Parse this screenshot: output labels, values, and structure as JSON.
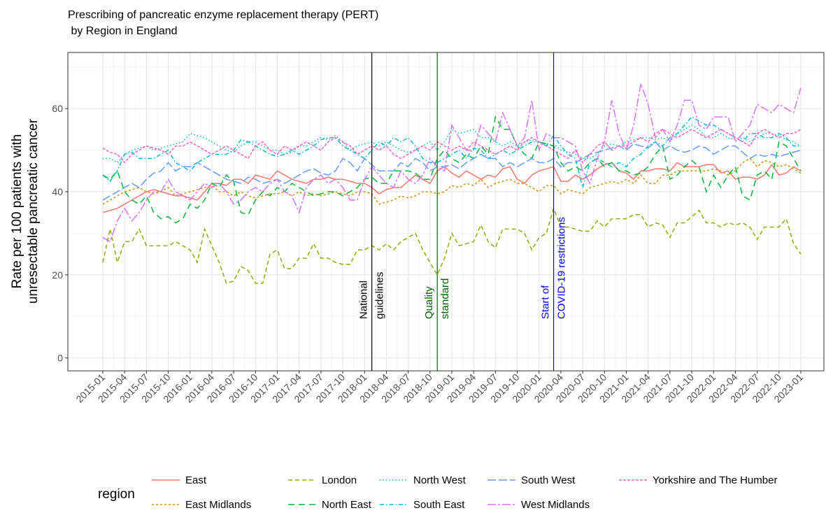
{
  "chart_data": {
    "type": "line",
    "title": [
      "Prescribing of pancreatic enzyme replacement therapy (PERT)",
      " by Region in England"
    ],
    "y_label": [
      "Rate per 100 patients with",
      "unresectable pancreatic cancer"
    ],
    "legend_title": "region",
    "x": [
      "2015-01",
      "2015-02",
      "2015-03",
      "2015-04",
      "2015-05",
      "2015-06",
      "2015-07",
      "2015-08",
      "2015-09",
      "2015-10",
      "2015-11",
      "2015-12",
      "2016-01",
      "2016-02",
      "2016-03",
      "2016-04",
      "2016-05",
      "2016-06",
      "2016-07",
      "2016-08",
      "2016-09",
      "2016-10",
      "2016-11",
      "2016-12",
      "2017-01",
      "2017-02",
      "2017-03",
      "2017-04",
      "2017-05",
      "2017-06",
      "2017-07",
      "2017-08",
      "2017-09",
      "2017-10",
      "2017-11",
      "2017-12",
      "2018-01",
      "2018-02",
      "2018-03",
      "2018-04",
      "2018-05",
      "2018-06",
      "2018-07",
      "2018-08",
      "2018-09",
      "2018-10",
      "2018-11",
      "2018-12",
      "2019-01",
      "2019-02",
      "2019-03",
      "2019-04",
      "2019-05",
      "2019-06",
      "2019-07",
      "2019-08",
      "2019-09",
      "2019-10",
      "2019-11",
      "2019-12",
      "2020-01",
      "2020-02",
      "2020-03",
      "2020-04",
      "2020-05",
      "2020-06",
      "2020-07",
      "2020-08",
      "2020-09",
      "2020-10",
      "2020-11",
      "2020-12",
      "2021-01",
      "2021-02",
      "2021-03",
      "2021-04",
      "2021-05",
      "2021-06",
      "2021-07",
      "2021-08",
      "2021-09",
      "2021-10",
      "2021-11",
      "2021-12",
      "2022-01",
      "2022-02",
      "2022-03",
      "2022-04",
      "2022-05",
      "2022-06",
      "2022-07",
      "2022-08",
      "2022-09",
      "2022-10",
      "2022-11",
      "2022-12",
      "2023-01"
    ],
    "xticks": [
      "2015-01",
      "2015-04",
      "2015-07",
      "2015-10",
      "2016-01",
      "2016-04",
      "2016-07",
      "2016-10",
      "2017-01",
      "2017-04",
      "2017-07",
      "2017-10",
      "2018-01",
      "2018-04",
      "2018-07",
      "2018-10",
      "2019-01",
      "2019-04",
      "2019-07",
      "2019-10",
      "2020-01",
      "2020-04",
      "2020-07",
      "2020-10",
      "2021-01",
      "2021-04",
      "2021-07",
      "2021-10",
      "2022-01",
      "2022-04",
      "2022-07",
      "2022-10",
      "2023-01"
    ],
    "ylim": [
      -3.1,
      73.5
    ],
    "yticks": [
      0,
      20,
      40,
      60
    ],
    "grid": true,
    "annotations": [
      {
        "x": "2018-02",
        "label": [
          "National",
          "guidelines"
        ],
        "color": "#000000"
      },
      {
        "x": "2018-11",
        "label": [
          "Quality",
          "standard"
        ],
        "color": "#006400"
      },
      {
        "x": "2020-03",
        "label": [
          "Start of",
          "COVID-19 restrictions"
        ],
        "color": "#0000ff"
      }
    ],
    "series": [
      {
        "name": "East",
        "color": "#F8766D",
        "dash": "none",
        "values": [
          35,
          35.5,
          36,
          37,
          38,
          39,
          40,
          40.5,
          40,
          39.5,
          39,
          39,
          38.5,
          38,
          40,
          42,
          42,
          41.5,
          43,
          43,
          42,
          44,
          43.5,
          43,
          45,
          44,
          43,
          42.5,
          42,
          43,
          43,
          43.5,
          43,
          43,
          42.5,
          42,
          42,
          41,
          39.5,
          40.5,
          41,
          41,
          42.5,
          44,
          43,
          42,
          45,
          46,
          44.5,
          43.5,
          45,
          44,
          43,
          44,
          43.5,
          45.5,
          46,
          43,
          42,
          44,
          45,
          45.5,
          46,
          42.5,
          42.5,
          44,
          43,
          44,
          45.5,
          46.5,
          47,
          45,
          44.5,
          43,
          45,
          45,
          45.5,
          45.5,
          45,
          47,
          46,
          46,
          46,
          46.5,
          46.5,
          44.5,
          45,
          43,
          43.5,
          43.5,
          43,
          44,
          46.5,
          44,
          44.5,
          46,
          45
        ]
      },
      {
        "name": "East Midlands",
        "color": "#D39200",
        "dash": "3 3",
        "values": [
          37,
          38,
          39,
          40,
          40.5,
          41,
          40,
          39.5,
          40,
          41,
          39,
          39.5,
          40,
          40.5,
          41,
          41.5,
          40,
          40,
          39,
          40,
          39,
          38.5,
          39,
          39.5,
          39.5,
          40,
          39,
          40,
          39,
          39.5,
          39,
          39.5,
          40,
          39.5,
          39,
          40,
          40,
          39.5,
          37,
          37.5,
          38,
          39,
          38.5,
          39,
          40,
          40,
          39.5,
          40,
          41.5,
          41,
          42,
          41.5,
          43,
          41,
          42,
          42.5,
          43,
          42,
          42,
          41,
          40,
          41.5,
          41.5,
          39.5,
          40.5,
          40,
          39.5,
          41,
          41.5,
          42,
          42.5,
          42,
          43,
          42,
          44,
          42,
          42,
          44,
          44,
          45,
          45,
          45,
          45,
          45,
          45.5,
          45,
          44,
          45,
          47,
          48,
          46,
          47.5,
          47,
          46,
          46.5,
          45.5,
          44.5
        ]
      },
      {
        "name": "London",
        "color": "#93AA00",
        "dash": "6 4",
        "values": [
          23,
          31,
          23,
          28,
          28,
          31,
          27,
          27,
          27,
          27,
          28,
          27,
          26,
          23,
          31,
          27,
          23,
          18,
          18.5,
          22,
          21,
          18,
          18,
          25,
          26,
          21.5,
          21.5,
          24,
          24,
          27.5,
          24,
          24,
          23,
          22.5,
          22.5,
          26,
          26,
          27,
          26,
          27.5,
          26,
          28,
          29,
          30,
          26,
          23,
          20,
          24,
          30,
          27,
          27.5,
          28,
          32,
          28,
          26.5,
          31,
          31,
          31,
          30,
          26,
          29,
          30,
          36,
          31.5,
          31.5,
          31,
          30.5,
          30.5,
          33,
          31.5,
          33.5,
          33.5,
          33.5,
          34.5,
          34.5,
          31.5,
          32.5,
          32,
          29,
          32.5,
          32.5,
          34,
          35.5,
          32.5,
          32.5,
          31.5,
          32.5,
          32,
          32.5,
          31.5,
          28.5,
          31.5,
          31.5,
          31.5,
          33.5,
          27.5,
          25
        ]
      },
      {
        "name": "North East",
        "color": "#00BA38",
        "dash": "9 6",
        "values": [
          44,
          43,
          45,
          40,
          38,
          37,
          39,
          35,
          33.5,
          34,
          32.5,
          33.5,
          37,
          36,
          38,
          42,
          41,
          44,
          42.5,
          35,
          34.5,
          38,
          40,
          39,
          41,
          40,
          42,
          41,
          40,
          39,
          39.5,
          40,
          40,
          39,
          40,
          41,
          43,
          43.5,
          42,
          42,
          45,
          45,
          45,
          44.5,
          43,
          43,
          48,
          50,
          48,
          47,
          49,
          48,
          51,
          49,
          58,
          55,
          55,
          51,
          49,
          48,
          52,
          51.5,
          51,
          47,
          45,
          46,
          45,
          47,
          48,
          46,
          47,
          45,
          45,
          44,
          44.5,
          46,
          49,
          51,
          43,
          44,
          46,
          47.5,
          46,
          40,
          44,
          41,
          44,
          46,
          39,
          38,
          44,
          45,
          43,
          52,
          51,
          48,
          45
        ]
      },
      {
        "name": "North West",
        "color": "#00C19F",
        "dash": "1.5 3",
        "values": [
          48,
          48,
          47,
          49,
          50,
          50.5,
          51,
          50,
          50.5,
          51,
          51.5,
          52,
          54,
          53.5,
          53,
          52,
          51,
          50,
          49.5,
          51,
          52,
          52,
          51,
          50,
          50,
          49,
          49.5,
          51,
          51,
          52,
          53,
          52.5,
          53.5,
          52,
          50,
          51,
          51.5,
          52,
          51,
          52,
          51,
          50,
          49.5,
          50,
          51,
          52,
          50,
          52,
          55,
          54,
          54.5,
          55,
          53,
          53,
          52,
          51,
          52,
          51,
          52,
          52.5,
          52,
          51,
          51.5,
          50,
          49.5,
          49,
          48,
          48,
          49,
          51,
          51.5,
          51,
          52,
          52.5,
          53,
          53,
          52.5,
          53,
          52,
          54,
          55,
          56,
          55,
          53,
          53,
          54,
          53,
          52.5,
          53,
          52,
          53,
          54,
          54,
          53.5,
          52.5,
          52,
          51
        ]
      },
      {
        "name": "South East",
        "color": "#00B9E3",
        "dash": "6 3 1.5 3",
        "values": [
          44,
          42.5,
          45,
          49,
          49.5,
          48,
          48,
          48,
          49,
          50,
          47,
          46,
          45,
          47,
          48,
          49,
          49,
          49,
          50,
          52.5,
          52,
          51,
          50,
          49,
          48.5,
          49,
          50,
          49,
          50,
          51,
          52.5,
          53,
          53,
          51,
          50,
          49,
          48,
          50,
          52,
          51,
          53,
          52,
          53,
          51,
          48,
          47,
          47,
          48,
          49,
          50,
          48,
          50.5,
          50,
          48,
          49,
          50,
          49,
          50,
          51,
          52,
          52,
          51,
          53.5,
          51,
          49,
          48,
          41,
          47,
          48,
          47,
          46,
          47,
          46,
          48,
          49,
          51,
          52,
          51,
          53,
          54,
          56,
          58,
          57,
          56,
          56,
          55,
          54,
          53,
          52,
          54,
          54,
          53,
          53,
          54,
          53,
          51,
          51
        ]
      },
      {
        "name": "South West",
        "color": "#619CFF",
        "dash": "12 4",
        "values": [
          38,
          39,
          40,
          41,
          42,
          41,
          43,
          44.5,
          45,
          47,
          45,
          46,
          46,
          47,
          46,
          45,
          44,
          43,
          42.5,
          42,
          43.5,
          43,
          42,
          42.5,
          43,
          42,
          43,
          44,
          45,
          45.5,
          44.5,
          44,
          45,
          48,
          47,
          45,
          48,
          46.5,
          45,
          45,
          45,
          47,
          46,
          48,
          47,
          45,
          46,
          46,
          46.5,
          45.5,
          47,
          48,
          49,
          48,
          48,
          46,
          47,
          46,
          47,
          48,
          47,
          47,
          48,
          46,
          47,
          47,
          48,
          49,
          49.5,
          50,
          50.5,
          51,
          50,
          51.5,
          51,
          50.5,
          52,
          50,
          51,
          50,
          49.5,
          50,
          51,
          50.5,
          49,
          50,
          51,
          51,
          49.5,
          48,
          49,
          48.5,
          49,
          48.5,
          49,
          49.5,
          50
        ]
      },
      {
        "name": "West Midlands",
        "color": "#DB72FB",
        "dash": "12 3 3 3",
        "values": [
          29,
          28,
          33,
          36,
          33,
          35,
          38,
          40,
          40,
          43,
          40,
          39,
          38,
          40,
          42,
          41,
          42,
          40,
          37,
          38,
          40,
          41,
          40,
          42,
          43,
          40,
          39,
          35,
          41,
          43,
          44,
          42,
          43,
          41,
          38,
          38,
          43,
          46,
          44,
          42,
          41,
          45,
          43,
          42,
          44,
          48,
          46,
          45,
          56,
          53,
          50,
          50,
          56,
          54,
          52,
          59,
          55,
          51,
          53,
          62,
          50,
          54,
          53,
          53,
          52,
          51,
          45,
          42,
          48,
          52,
          62,
          54,
          50,
          56,
          66,
          61,
          53,
          55,
          52,
          56,
          62,
          62,
          56,
          55,
          58,
          58,
          58,
          52,
          54,
          56,
          61,
          60,
          59,
          61,
          60,
          59,
          65
        ]
      },
      {
        "name": "Yorkshire and The Humber",
        "color": "#FF61C3",
        "dash": "4 2",
        "values": [
          50.5,
          49.5,
          49,
          47,
          49,
          50,
          51,
          50.5,
          50,
          49,
          51,
          51,
          52,
          51,
          50,
          49,
          50,
          51,
          50,
          49,
          48,
          51,
          52,
          50,
          49,
          51,
          50,
          51,
          52,
          51,
          50,
          52,
          53,
          52,
          51,
          49,
          50,
          51,
          50,
          51,
          49,
          48,
          49,
          50,
          51,
          50,
          52,
          51,
          50,
          51,
          50,
          52,
          51,
          50,
          49,
          50,
          51,
          50,
          52,
          53,
          52,
          51,
          50,
          49,
          48,
          50,
          47,
          49,
          51,
          52,
          50,
          51,
          51,
          52,
          53,
          52,
          54,
          55,
          54,
          53,
          54,
          55,
          54,
          53,
          54,
          55,
          54,
          53,
          52,
          51,
          54,
          55,
          54,
          53,
          54,
          54,
          55
        ]
      }
    ]
  }
}
